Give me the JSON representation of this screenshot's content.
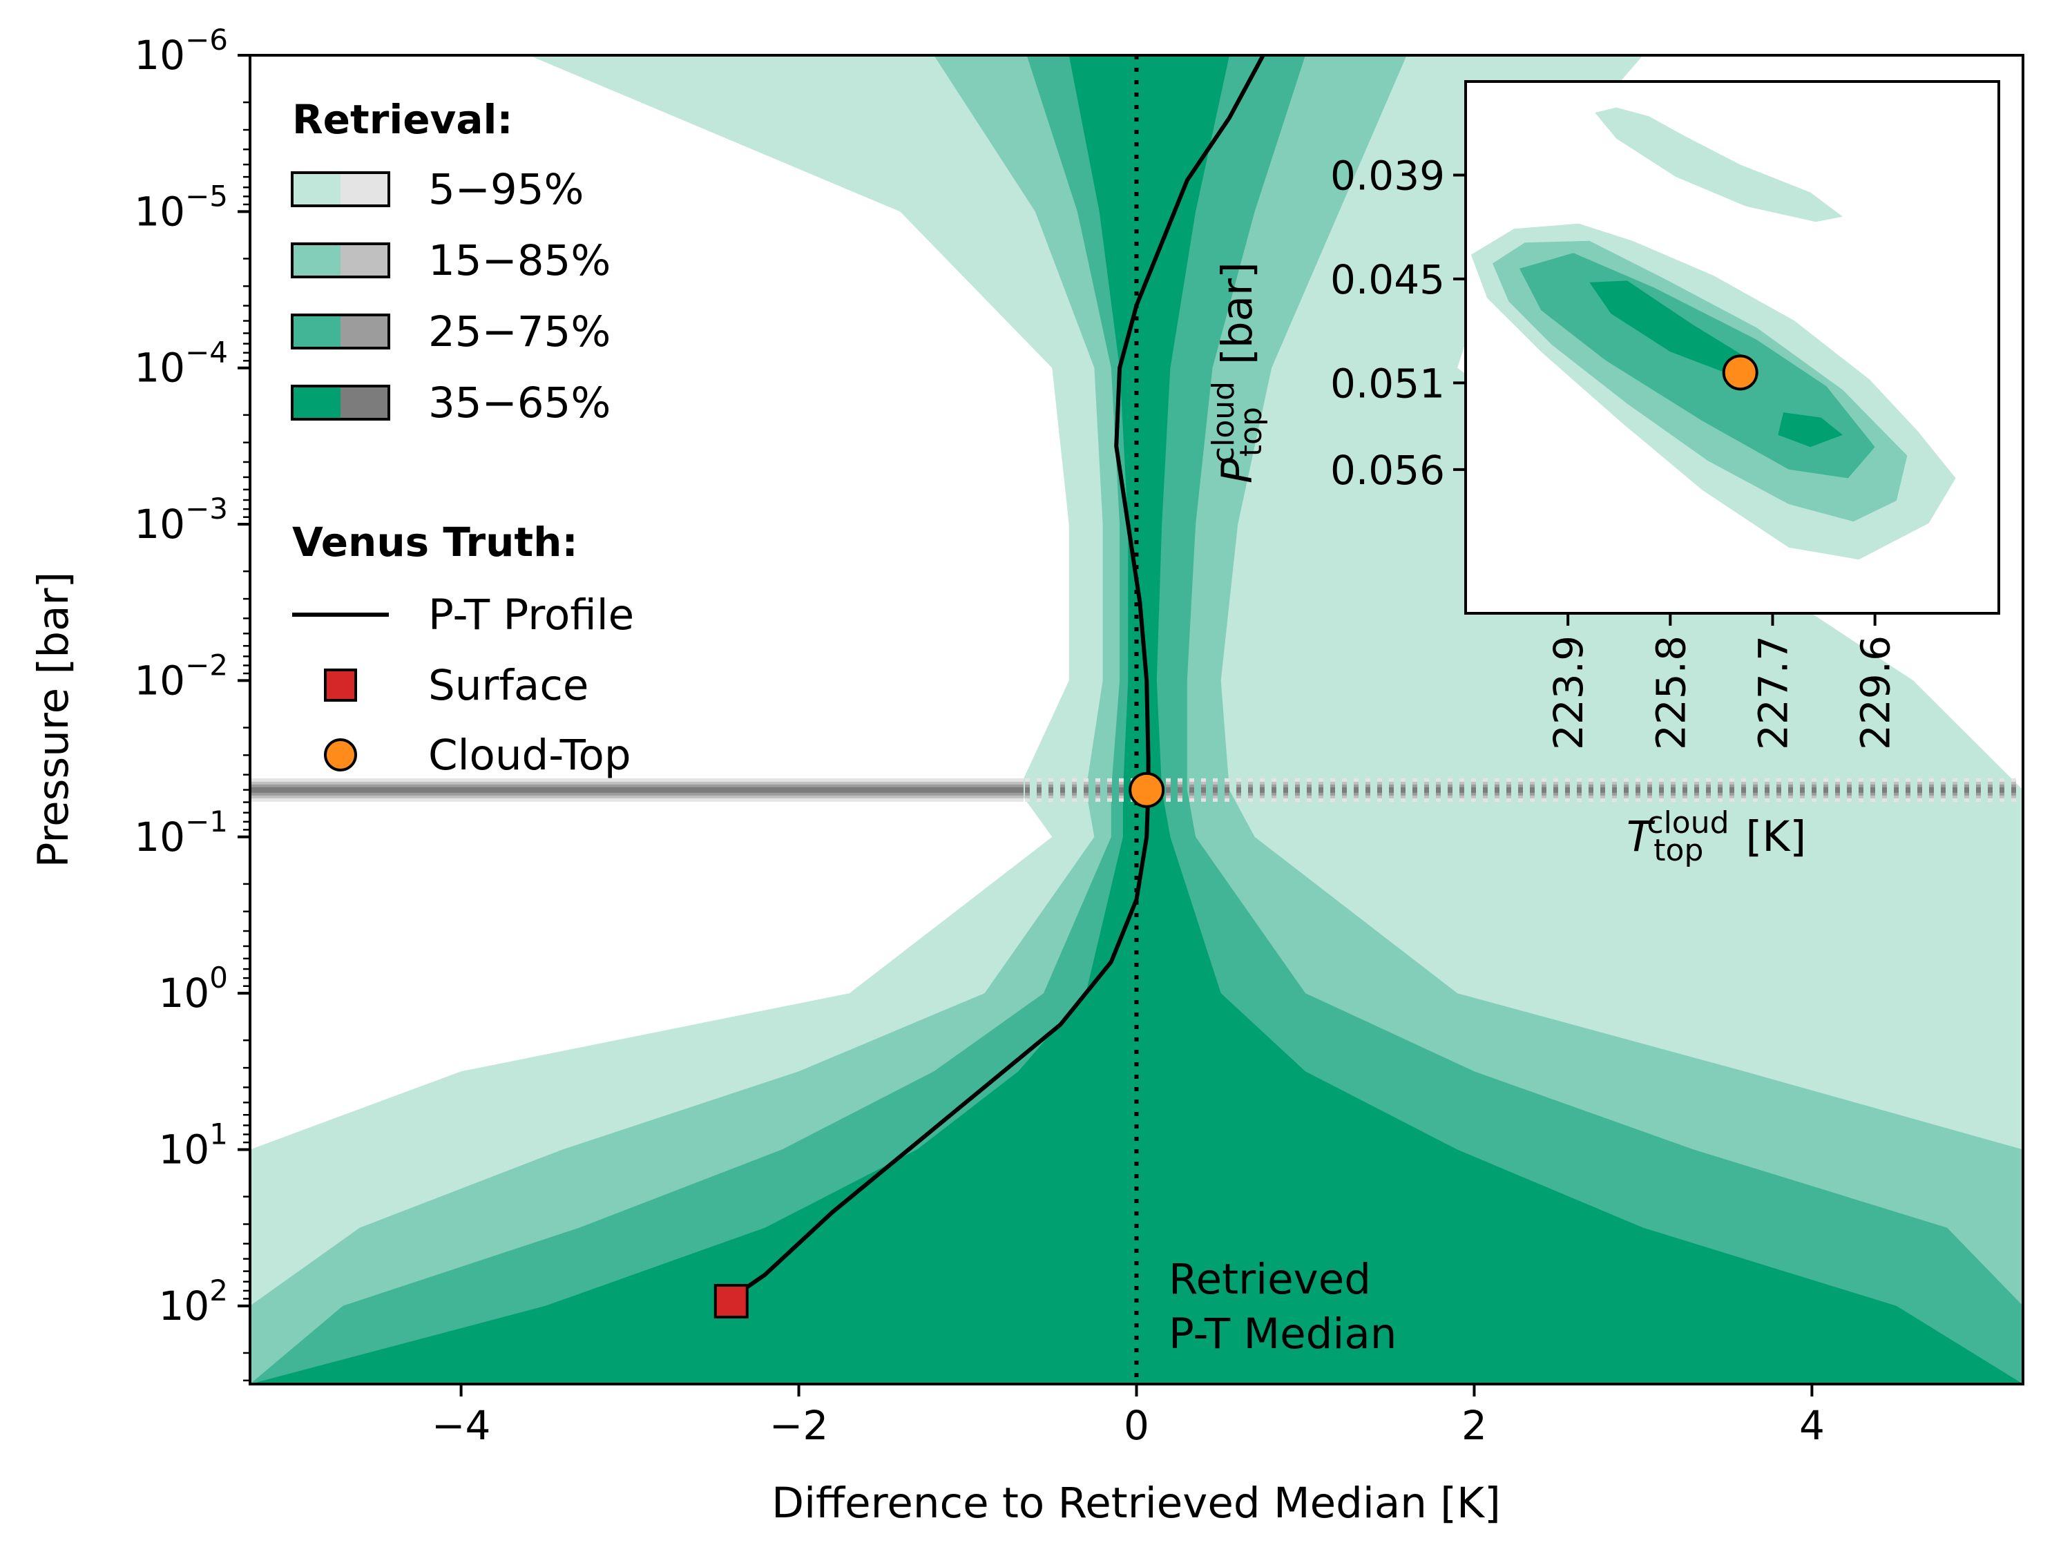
{
  "chart_data": [
    {
      "type": "area",
      "title": "",
      "xlabel": "Difference to Retrieved Median [K]",
      "ylabel": "Pressure [bar]",
      "xlim": [
        -5.25,
        5.25
      ],
      "ylim_log10": [
        -6,
        2.5
      ],
      "y_scale": "log",
      "y_inverted": true,
      "grid": false,
      "x_ticks": [
        {
          "value": -4,
          "label": "−4"
        },
        {
          "value": -2,
          "label": "−2"
        },
        {
          "value": 0,
          "label": "0"
        },
        {
          "value": 2,
          "label": "2"
        },
        {
          "value": 4,
          "label": "4"
        }
      ],
      "y_ticks": [
        {
          "exp": -6,
          "base": "10",
          "sup": "−6"
        },
        {
          "exp": -5,
          "base": "10",
          "sup": "−5"
        },
        {
          "exp": -4,
          "base": "10",
          "sup": "−4"
        },
        {
          "exp": -3,
          "base": "10",
          "sup": "−3"
        },
        {
          "exp": -2,
          "base": "10",
          "sup": "−2"
        },
        {
          "exp": -1,
          "base": "10",
          "sup": "−1"
        },
        {
          "exp": 0,
          "base": "10",
          "sup": "0"
        },
        {
          "exp": 1,
          "base": "10",
          "sup": "1"
        },
        {
          "exp": 2,
          "base": "10",
          "sup": "2"
        }
      ],
      "colors": {
        "band_5_95": "#c1e7db",
        "band_15_85": "#82ceb8",
        "band_25_75": "#41b595",
        "band_35_65": "#00a070",
        "gray_5_95": "#e4e4e4",
        "gray_15_85": "#c0c0c0",
        "gray_25_75": "#9c9c9c",
        "gray_35_65": "#7c7c7c",
        "truth_line": "#000000",
        "surface_marker": "#d62728",
        "cloud_marker": "#ff8c1a",
        "cloud_level": "#8c8c8c"
      },
      "log10p_grid": [
        -6,
        -5,
        -4,
        -3,
        -2,
        -1.3,
        -1,
        0,
        0.5,
        1,
        1.5,
        2,
        2.5
      ],
      "bands": [
        {
          "name": "5-95",
          "lo": [
            -3.6,
            -1.4,
            -0.5,
            -0.4,
            -0.4,
            -0.7,
            -0.5,
            -1.7,
            -4.0,
            -5.25,
            -5.25,
            -5.25,
            -5.25
          ],
          "hi": [
            3.0,
            2.2,
            1.9,
            3.2,
            4.6,
            5.25,
            5.25,
            5.25,
            5.25,
            5.25,
            5.25,
            5.25,
            5.25
          ]
        },
        {
          "name": "15-85",
          "lo": [
            -1.2,
            -0.6,
            -0.25,
            -0.2,
            -0.2,
            -0.3,
            -0.25,
            -0.9,
            -2.0,
            -3.4,
            -4.6,
            -5.25,
            -5.25
          ],
          "hi": [
            1.6,
            1.2,
            0.8,
            0.6,
            0.5,
            0.55,
            0.7,
            1.9,
            3.6,
            5.25,
            5.25,
            5.25,
            5.25
          ]
        },
        {
          "name": "25-75",
          "lo": [
            -0.65,
            -0.35,
            -0.15,
            -0.1,
            -0.1,
            -0.15,
            -0.15,
            -0.55,
            -1.2,
            -2.1,
            -3.3,
            -4.7,
            -5.25
          ],
          "hi": [
            1.0,
            0.7,
            0.45,
            0.35,
            0.3,
            0.3,
            0.35,
            1.0,
            2.0,
            3.3,
            4.8,
            5.25,
            5.25
          ]
        },
        {
          "name": "35-65",
          "lo": [
            -0.4,
            -0.22,
            -0.1,
            -0.05,
            -0.05,
            -0.08,
            -0.08,
            -0.3,
            -0.7,
            -1.3,
            -2.2,
            -3.5,
            -5.25
          ],
          "hi": [
            0.55,
            0.35,
            0.2,
            0.15,
            0.12,
            0.15,
            0.2,
            0.5,
            1.0,
            1.9,
            3.0,
            4.5,
            5.25
          ]
        }
      ],
      "truth_profile": {
        "name": "P-T Profile",
        "log10p": [
          -6,
          -5.6,
          -5.2,
          -4.8,
          -4.4,
          -4.0,
          -3.5,
          -3.0,
          -2.5,
          -2.0,
          -1.5,
          -1.3,
          -1.0,
          -0.6,
          -0.2,
          0.2,
          0.6,
          1.0,
          1.4,
          1.8,
          1.95
        ],
        "dT": [
          0.75,
          0.55,
          0.3,
          0.15,
          0.0,
          -0.1,
          -0.12,
          -0.05,
          0.02,
          0.06,
          0.07,
          0.07,
          0.06,
          0.0,
          -0.15,
          -0.45,
          -0.9,
          -1.35,
          -1.8,
          -2.2,
          -2.4
        ]
      },
      "surface": {
        "name": "Surface",
        "dT": -2.4,
        "log10p": 1.97
      },
      "cloud_top": {
        "name": "Cloud-Top",
        "dT": 0.06,
        "log10p": -1.3
      },
      "median_line": {
        "dT": 0,
        "label_lines": [
          "Retrieved",
          "P-T Median"
        ]
      },
      "legend": {
        "placement": "upper-left",
        "retrieval_title": "Retrieval:",
        "retrieval_items": [
          "5−95%",
          "15−85%",
          "25−75%",
          "35−65%"
        ],
        "truth_title": "Venus Truth:",
        "truth_items": [
          "P-T Profile",
          "Surface",
          "Cloud-Top"
        ]
      }
    },
    {
      "type": "heatmap",
      "placement": "inset upper-right",
      "xlabel_base": "T",
      "xlabel_sub": "top",
      "xlabel_sup": "cloud",
      "xlabel_unit": "[K]",
      "ylabel_base": "P",
      "ylabel_sub": "top",
      "ylabel_sup": "cloud",
      "ylabel_unit": "[bar]",
      "xlim": [
        222.0,
        231.9
      ],
      "ylim": [
        0.0336,
        0.0643
      ],
      "y_inverted": true,
      "x_ticks": [
        "223.9",
        "225.8",
        "227.7",
        "229.6"
      ],
      "x_tick_values": [
        223.9,
        225.8,
        227.7,
        229.6
      ],
      "y_ticks": [
        "0.039",
        "0.045",
        "0.051",
        "0.056"
      ],
      "y_tick_values": [
        0.039,
        0.045,
        0.051,
        0.056
      ],
      "truth": {
        "T": 227.1,
        "P": 0.0504
      },
      "contours": [
        {
          "level": "5-95",
          "points": [
            [
              222.1,
              0.0436
            ],
            [
              222.9,
              0.0421
            ],
            [
              224.1,
              0.0418
            ],
            [
              225.1,
              0.0428
            ],
            [
              226.6,
              0.0448
            ],
            [
              228.1,
              0.0474
            ],
            [
              229.5,
              0.0508
            ],
            [
              230.4,
              0.0538
            ],
            [
              231.1,
              0.0565
            ],
            [
              230.6,
              0.0591
            ],
            [
              229.3,
              0.0612
            ],
            [
              228.0,
              0.0605
            ],
            [
              226.4,
              0.0572
            ],
            [
              224.9,
              0.0533
            ],
            [
              223.4,
              0.0492
            ],
            [
              222.4,
              0.0461
            ]
          ]
        },
        {
          "level": "5-95",
          "points": [
            [
              224.4,
              0.0354
            ],
            [
              224.8,
              0.0351
            ],
            [
              225.4,
              0.0356
            ],
            [
              226.1,
              0.0368
            ],
            [
              227.1,
              0.0384
            ],
            [
              228.4,
              0.04
            ],
            [
              229.0,
              0.0414
            ],
            [
              228.5,
              0.0417
            ],
            [
              227.2,
              0.0408
            ],
            [
              225.9,
              0.0391
            ],
            [
              224.8,
              0.0369
            ]
          ]
        },
        {
          "level": "15-85",
          "points": [
            [
              222.5,
              0.0441
            ],
            [
              223.1,
              0.0429
            ],
            [
              224.3,
              0.0428
            ],
            [
              225.7,
              0.045
            ],
            [
              227.4,
              0.0478
            ],
            [
              229.0,
              0.0514
            ],
            [
              230.2,
              0.0552
            ],
            [
              230.0,
              0.0578
            ],
            [
              229.2,
              0.059
            ],
            [
              228.0,
              0.058
            ],
            [
              226.5,
              0.0555
            ],
            [
              225.0,
              0.0522
            ],
            [
              223.6,
              0.0488
            ],
            [
              222.8,
              0.0463
            ]
          ]
        },
        {
          "level": "25-75",
          "points": [
            [
              223.0,
              0.0444
            ],
            [
              224.0,
              0.0435
            ],
            [
              225.5,
              0.0455
            ],
            [
              227.4,
              0.0485
            ],
            [
              228.7,
              0.0512
            ],
            [
              229.6,
              0.0547
            ],
            [
              229.1,
              0.0565
            ],
            [
              228.0,
              0.056
            ],
            [
              226.4,
              0.0532
            ],
            [
              224.6,
              0.0497
            ],
            [
              223.4,
              0.0468
            ]
          ]
        },
        {
          "level": "35-65",
          "points": [
            [
              224.3,
              0.0452
            ],
            [
              225.0,
              0.0451
            ],
            [
              226.2,
              0.0476
            ],
            [
              227.3,
              0.0497
            ],
            [
              226.9,
              0.0505
            ],
            [
              225.8,
              0.0492
            ],
            [
              224.7,
              0.047
            ]
          ]
        },
        {
          "level": "35-65",
          "points": [
            [
              227.9,
              0.0527
            ],
            [
              228.6,
              0.053
            ],
            [
              229.0,
              0.054
            ],
            [
              228.4,
              0.0547
            ],
            [
              227.8,
              0.054
            ]
          ]
        }
      ]
    }
  ]
}
